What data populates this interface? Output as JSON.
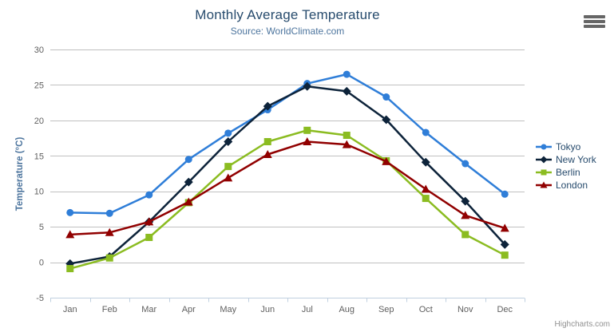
{
  "chart_data": {
    "type": "line",
    "title": "Monthly Average Temperature",
    "subtitle": "Source: WorldClimate.com",
    "xlabel": "",
    "ylabel": "Temperature (°C)",
    "ylim": [
      -5,
      30
    ],
    "y_tick_step": 5,
    "grid": true,
    "legend_position": "right",
    "categories": [
      "Jan",
      "Feb",
      "Mar",
      "Apr",
      "May",
      "Jun",
      "Jul",
      "Aug",
      "Sep",
      "Oct",
      "Nov",
      "Dec"
    ],
    "series": [
      {
        "name": "Tokyo",
        "color": "#2f7ed8",
        "marker": "circle",
        "values": [
          7.0,
          6.9,
          9.5,
          14.5,
          18.2,
          21.5,
          25.2,
          26.5,
          23.3,
          18.3,
          13.9,
          9.6
        ]
      },
      {
        "name": "New York",
        "color": "#0d233a",
        "marker": "diamond",
        "values": [
          -0.2,
          0.8,
          5.7,
          11.3,
          17.0,
          22.0,
          24.8,
          24.1,
          20.1,
          14.1,
          8.6,
          2.5
        ]
      },
      {
        "name": "Berlin",
        "color": "#8bbc21",
        "marker": "square",
        "values": [
          -0.9,
          0.6,
          3.5,
          8.4,
          13.5,
          17.0,
          18.6,
          17.9,
          14.3,
          9.0,
          3.9,
          1.0
        ]
      },
      {
        "name": "London",
        "color": "#910000",
        "marker": "triangle",
        "values": [
          3.9,
          4.2,
          5.7,
          8.5,
          11.9,
          15.2,
          17.0,
          16.6,
          14.2,
          10.3,
          6.6,
          4.8
        ]
      }
    ]
  },
  "ui": {
    "credits": "Highcharts.com",
    "export_menu_icon": "hamburger-menu-icon",
    "colors": {
      "title": "#274b6d",
      "subtitle": "#4d759e",
      "y_axis_title": "#4d759e",
      "axis_label": "#606060",
      "axis_line": "#c0d0e0",
      "gridline": "#c0c0c0",
      "legend_text": "#274b6d",
      "credits_text": "#909090",
      "export_icon": "#666666"
    }
  }
}
